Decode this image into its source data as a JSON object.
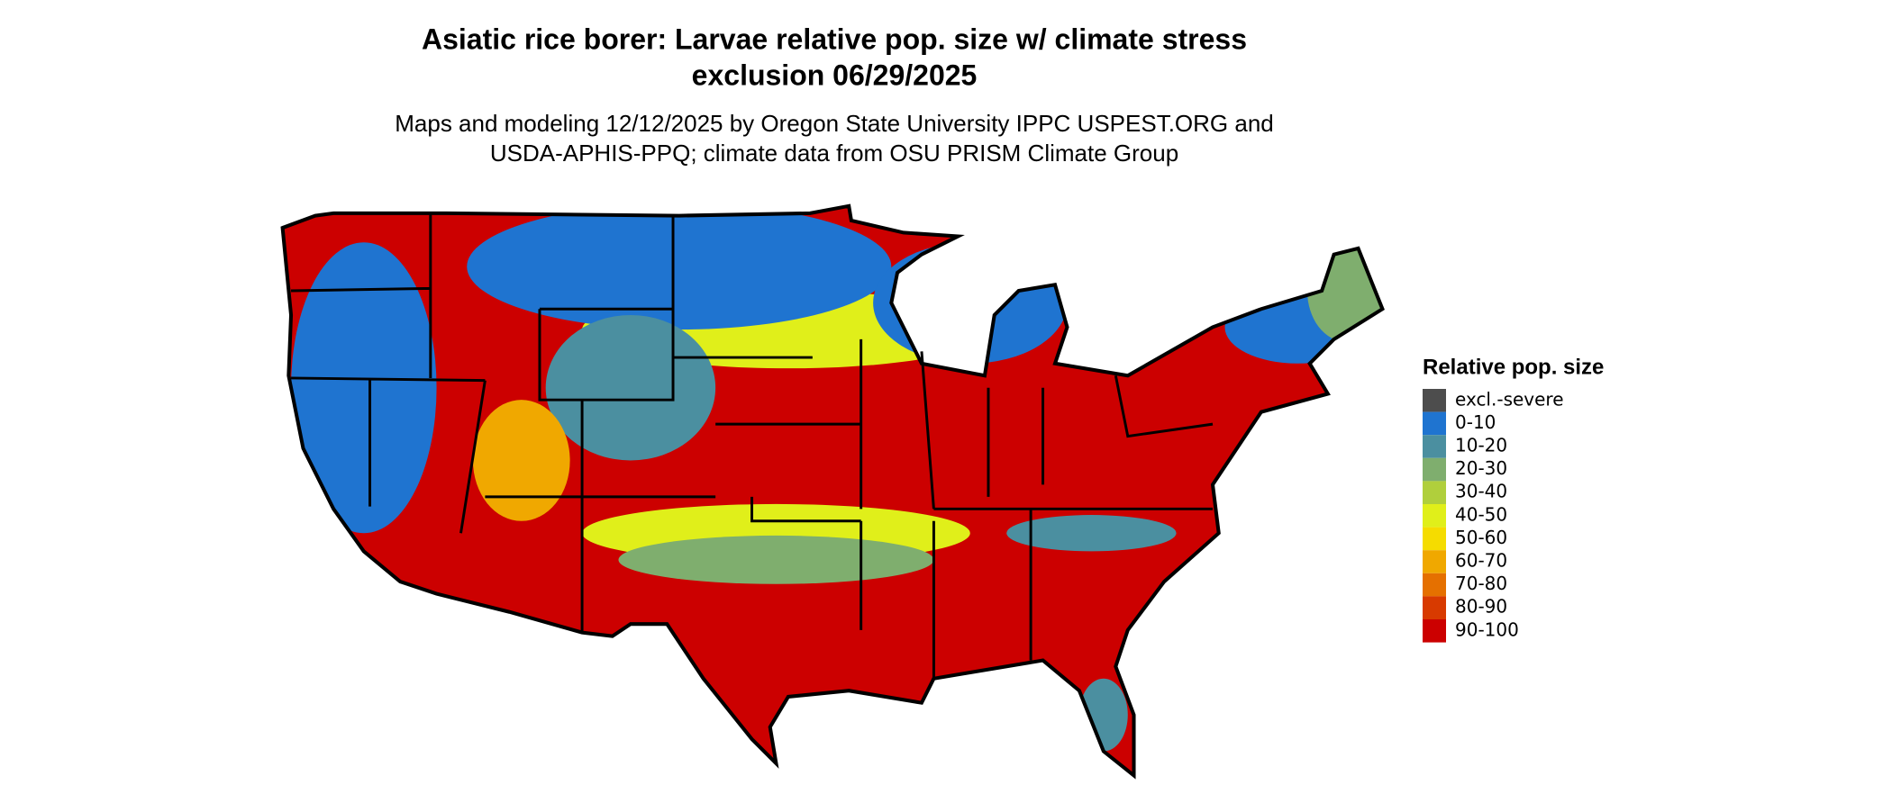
{
  "title": [
    "Asiatic rice borer: Larvae relative pop. size w/ climate stress",
    "exclusion 06/29/2025"
  ],
  "subtitle": [
    "Maps and modeling 12/12/2025 by Oregon State University IPPC USPEST.ORG and",
    "USDA-APHIS-PPQ; climate data from OSU PRISM Climate Group"
  ],
  "legend": {
    "title": "Relative pop. size",
    "items": [
      {
        "label": "excl.-severe",
        "color": "#4d4d4d"
      },
      {
        "label": "0-10",
        "color": "#1f74d0"
      },
      {
        "label": "10-20",
        "color": "#4b8fa0"
      },
      {
        "label": "20-30",
        "color": "#7fae6e"
      },
      {
        "label": "30-40",
        "color": "#b0cf3c"
      },
      {
        "label": "40-50",
        "color": "#e0ef1a"
      },
      {
        "label": "50-60",
        "color": "#f5dc00"
      },
      {
        "label": "60-70",
        "color": "#f0a800"
      },
      {
        "label": "70-80",
        "color": "#e57000"
      },
      {
        "label": "80-90",
        "color": "#d83a00"
      },
      {
        "label": "90-100",
        "color": "#cc0000"
      }
    ]
  }
}
